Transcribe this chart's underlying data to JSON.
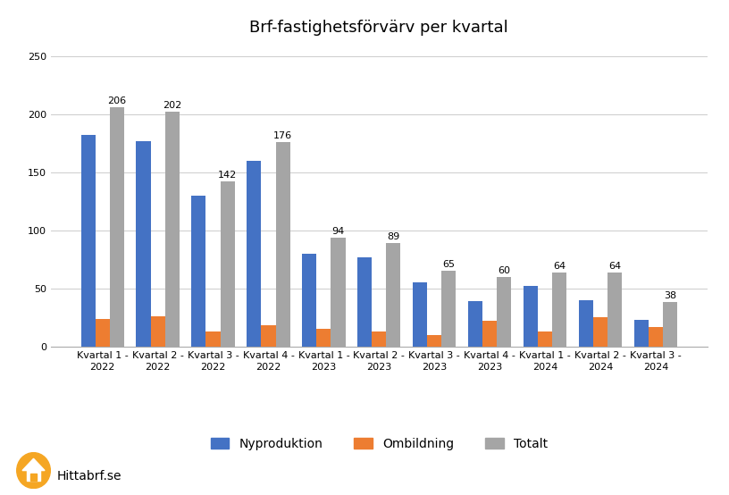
{
  "title": "Brf-fastighetsförvärv per kvartal",
  "categories": [
    "Kvartal 1 -\n2022",
    "Kvartal 2 -\n2022",
    "Kvartal 3 -\n2022",
    "Kvartal 4 -\n2022",
    "Kvartal 1 -\n2023",
    "Kvartal 2 -\n2023",
    "Kvartal 3 -\n2023",
    "Kvartal 4 -\n2023",
    "Kvartal 1 -\n2024",
    "Kvartal 2 -\n2024",
    "Kvartal 3 -\n2024"
  ],
  "nyproduktion": [
    182,
    177,
    130,
    160,
    80,
    77,
    55,
    39,
    52,
    40,
    23
  ],
  "ombildning": [
    24,
    26,
    13,
    18,
    15,
    13,
    10,
    22,
    13,
    25,
    17
  ],
  "totalt": [
    206,
    202,
    142,
    176,
    94,
    89,
    65,
    60,
    64,
    64,
    38
  ],
  "color_nyproduktion": "#4472C4",
  "color_ombildning": "#ED7D31",
  "color_totalt": "#A5A5A5",
  "ylim": [
    0,
    260
  ],
  "yticks": [
    0,
    50,
    100,
    150,
    200,
    250
  ],
  "background_color": "#FFFFFF",
  "legend_labels": [
    "Nyproduktion",
    "Ombildning",
    "Totalt"
  ],
  "bar_width": 0.26,
  "title_fontsize": 13,
  "tick_fontsize": 8,
  "label_fontsize": 8,
  "footer_text": "Hittabrf.se"
}
